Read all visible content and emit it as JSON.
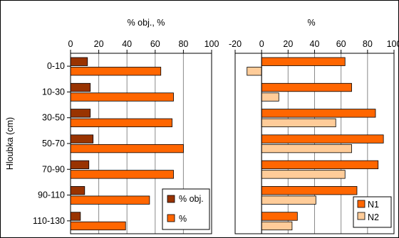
{
  "chart_data": [
    {
      "type": "bar",
      "orientation": "horizontal",
      "title": "% obj., %",
      "ylabel": "Hloubka (cm)",
      "categories": [
        "0-10",
        "10-30",
        "30-50",
        "50-70",
        "70-90",
        "90-110",
        "110-130"
      ],
      "xlim": [
        0,
        100
      ],
      "xticks": [
        0,
        20,
        40,
        60,
        80,
        100
      ],
      "grid": true,
      "legend_position": "bottom-right",
      "series": [
        {
          "name": "% obj.",
          "color": "#993300",
          "values": [
            12,
            14,
            14,
            16,
            13,
            10,
            7
          ]
        },
        {
          "name": "%",
          "color": "#FF6600",
          "values": [
            64,
            73,
            72,
            80,
            73,
            56,
            39
          ]
        }
      ]
    },
    {
      "type": "bar",
      "orientation": "horizontal",
      "title": "%",
      "categories": [
        "0-10",
        "10-30",
        "30-50",
        "50-70",
        "70-90",
        "90-110",
        "110-130"
      ],
      "xlim": [
        -20,
        100
      ],
      "xticks": [
        -20,
        0,
        20,
        40,
        60,
        80,
        100
      ],
      "grid": true,
      "legend_position": "bottom-right",
      "series": [
        {
          "name": "N1",
          "color": "#FF6600",
          "values": [
            63,
            68,
            86,
            92,
            88,
            72,
            27
          ]
        },
        {
          "name": "N2",
          "color": "#FFCC99",
          "values": [
            -11,
            13,
            56,
            68,
            63,
            41,
            23
          ]
        }
      ]
    }
  ]
}
